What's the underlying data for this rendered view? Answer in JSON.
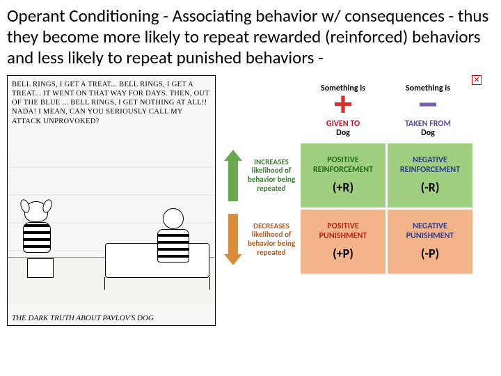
{
  "title": "Operant Conditioning - Associating behavior w/ consequences - thus they become more likely to repeat rewarded (reinforced)  behaviors and less likely to repeat punished behaviors -",
  "cartoon": {
    "speech": "BELL RINGS, I GET A TREAT... BELL RINGS, I GET A TREAT... IT WENT ON THAT WAY FOR DAYS. THEN, OUT OF THE BLUE ... BELL RINGS, I GET NOTHING AT ALL!! NADA! I MEAN, CAN YOU SERIOUSLY CALL MY ATTACK UNPROVOKED?",
    "caption": "THE DARK TRUTH ABOUT PAVLOV'S DOG"
  },
  "chart": {
    "broken_icon": "✕",
    "col_headers": {
      "left": "Something is",
      "right": "Something is"
    },
    "symbols": {
      "plus": "+",
      "plus_color": "#d9302a",
      "minus": "−",
      "minus_color": "#7a5fb0"
    },
    "given": {
      "left_line1": "GIVEN TO",
      "left_line2": "Dog",
      "left_color": "#c1121f",
      "right_line1": "TAKEN FROM",
      "right_line2": "Dog",
      "right_color": "#5b4a9e"
    },
    "rows": {
      "top": {
        "arrow_color": "#6aa84f",
        "text": "INCREASES likelihood of behavior being repeated",
        "text_color": "#3a7d2e"
      },
      "bottom": {
        "arrow_color": "#d98c3a",
        "text": "DECREASES likelihood of behavior being repeated",
        "text_color": "#b4591d"
      }
    },
    "quadrants": {
      "tl": {
        "bg": "#9fcf7f",
        "label1": "POSITIVE",
        "label2": "REINFORCEMENT",
        "label_color": "#1f6d1f",
        "code": "(+R)"
      },
      "tr": {
        "bg": "#9fcf7f",
        "label1": "NEGATIVE",
        "label2": "REINFORCEMENT",
        "label_color": "#2f3b8f",
        "code": "(-R)"
      },
      "bl": {
        "bg": "#f3b48a",
        "label1": "POSITIVE",
        "label2": "PUNISHMENT",
        "label_color": "#b0271a",
        "code": "(+P)"
      },
      "br": {
        "bg": "#f3b48a",
        "label1": "NEGATIVE",
        "label2": "PUNISHMENT",
        "label_color": "#2f3b8f",
        "code": "(-P)"
      }
    }
  }
}
